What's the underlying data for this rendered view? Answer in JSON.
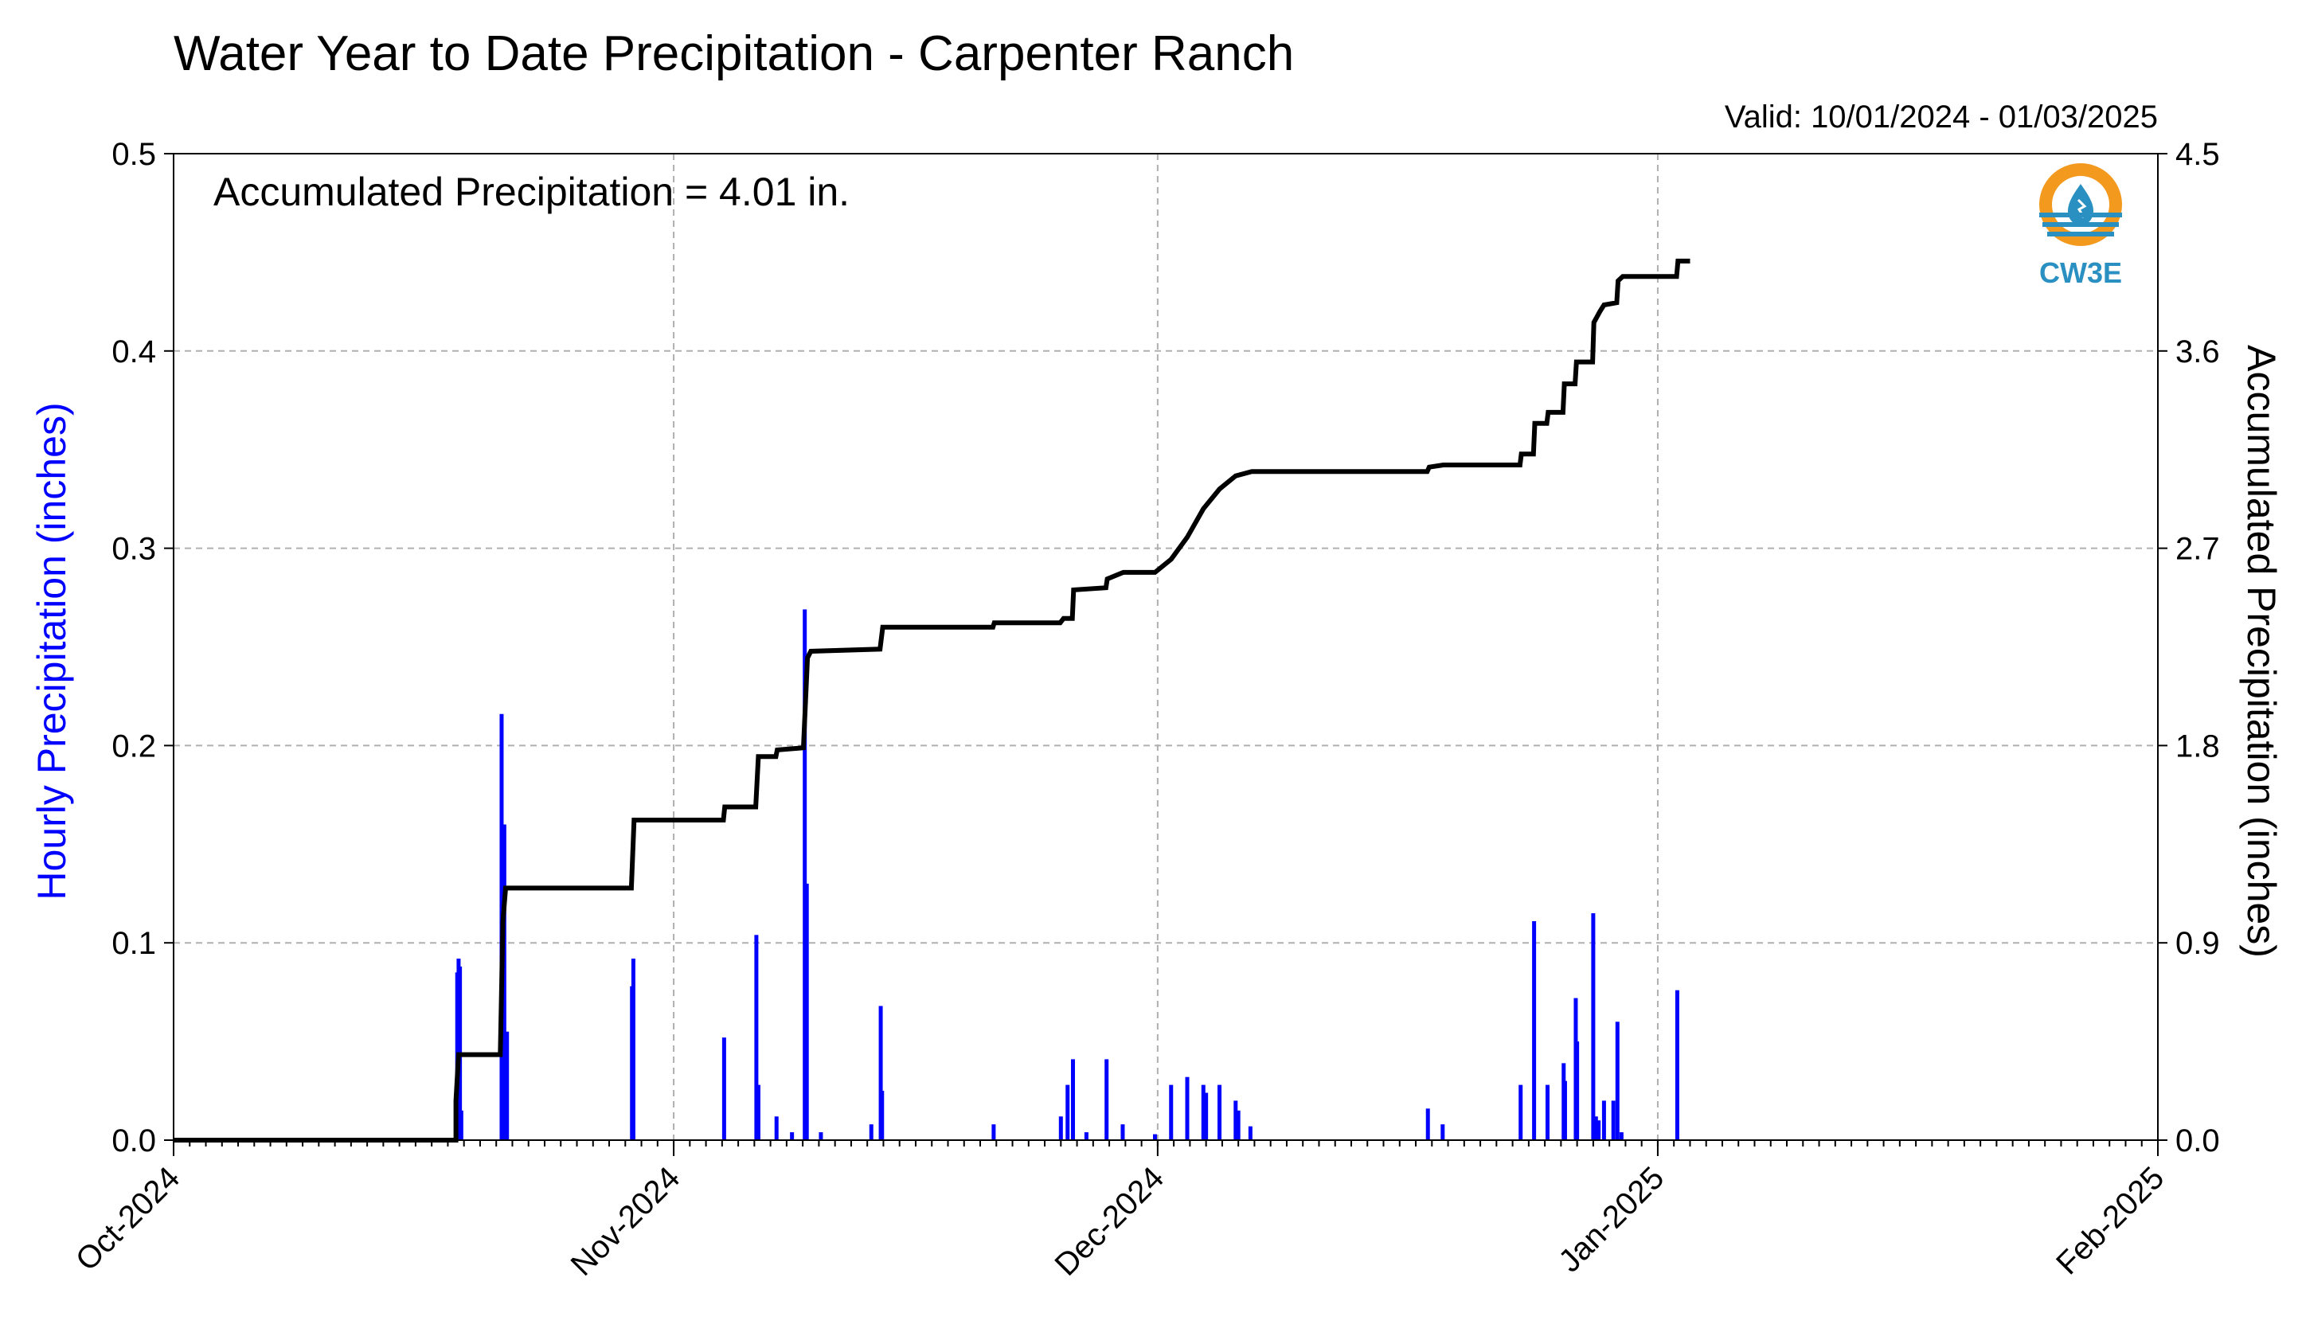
{
  "title": "Water Year to Date Precipitation - Carpenter Ranch",
  "valid": "Valid: 10/01/2024 - 01/03/2025",
  "annotation": "Accumulated Precipitation = 4.01 in.",
  "logo_text": "CW3E",
  "colors": {
    "hourly": "#0000ff",
    "accum": "#000000",
    "grid": "#b0b0b0",
    "logo_orange": "#f39a1e",
    "logo_blue": "#2a8fc1"
  },
  "chart_data": {
    "type": "bar",
    "title": "Water Year to Date Precipitation - Carpenter Ranch",
    "x_axis": {
      "type": "date",
      "range": [
        "2024-10-01",
        "2025-02-01"
      ],
      "tick_labels": [
        "Oct-2024",
        "Nov-2024",
        "Dec-2024",
        "Jan-2025",
        "Feb-2025"
      ],
      "tick_dates": [
        "2024-10-01",
        "2024-11-01",
        "2024-12-01",
        "2025-01-01",
        "2025-02-01"
      ]
    },
    "y_left": {
      "label": "Hourly Precipitation (inches)",
      "range": [
        0,
        0.5
      ],
      "ticks": [
        "0.0",
        "0.1",
        "0.2",
        "0.3",
        "0.4",
        "0.5"
      ]
    },
    "y_right": {
      "label": "Accumulated Precipitation (inches)",
      "range": [
        0,
        4.5
      ],
      "ticks": [
        "0.0",
        "0.9",
        "1.8",
        "2.7",
        "3.6",
        "4.5"
      ]
    },
    "grid": true,
    "series": [
      {
        "axis": "left",
        "type": "bar",
        "color": "#0000ff",
        "points": [
          [
            "2024-10-18T12:00",
            0.02
          ],
          [
            "2024-10-18T14:00",
            0.085
          ],
          [
            "2024-10-18T16:00",
            0.092
          ],
          [
            "2024-10-18T18:00",
            0.088
          ],
          [
            "2024-10-18T20:00",
            0.015
          ],
          [
            "2024-10-21T08:00",
            0.216
          ],
          [
            "2024-10-21T12:00",
            0.16
          ],
          [
            "2024-10-21T16:00",
            0.055
          ],
          [
            "2024-10-29T10:00",
            0.078
          ],
          [
            "2024-10-29T12:00",
            0.092
          ],
          [
            "2024-11-04T03:00",
            0.052
          ],
          [
            "2024-11-06T03:00",
            0.104
          ],
          [
            "2024-11-06T06:00",
            0.028
          ],
          [
            "2024-11-07T09:00",
            0.012
          ],
          [
            "2024-11-08T08:00",
            0.004
          ],
          [
            "2024-11-09T03:00",
            0.269
          ],
          [
            "2024-11-09T06:00",
            0.13
          ],
          [
            "2024-11-10T03:00",
            0.004
          ],
          [
            "2024-11-13T06:00",
            0.008
          ],
          [
            "2024-11-13T20:00",
            0.068
          ],
          [
            "2024-11-13T22:00",
            0.025
          ],
          [
            "2024-11-20T20:00",
            0.008
          ],
          [
            "2024-11-25T00:00",
            0.012
          ],
          [
            "2024-11-25T10:00",
            0.028
          ],
          [
            "2024-11-25T18:00",
            0.041
          ],
          [
            "2024-11-26T14:00",
            0.004
          ],
          [
            "2024-11-27T20:00",
            0.041
          ],
          [
            "2024-11-28T20:00",
            0.008
          ],
          [
            "2024-11-30T20:00",
            0.003
          ],
          [
            "2024-12-01T20:00",
            0.028
          ],
          [
            "2024-12-02T20:00",
            0.032
          ],
          [
            "2024-12-03T20:00",
            0.028
          ],
          [
            "2024-12-04T00:00",
            0.024
          ],
          [
            "2024-12-04T20:00",
            0.028
          ],
          [
            "2024-12-05T20:00",
            0.02
          ],
          [
            "2024-12-06T00:00",
            0.015
          ],
          [
            "2024-12-06T18:00",
            0.007
          ],
          [
            "2024-12-17T18:00",
            0.016
          ],
          [
            "2024-12-18T16:00",
            0.008
          ],
          [
            "2024-12-23T12:00",
            0.028
          ],
          [
            "2024-12-24T08:00",
            0.111
          ],
          [
            "2024-12-25T04:00",
            0.028
          ],
          [
            "2024-12-26T04:00",
            0.039
          ],
          [
            "2024-12-26T06:00",
            0.03
          ],
          [
            "2024-12-26T22:00",
            0.072
          ],
          [
            "2024-12-27T00:00",
            0.05
          ],
          [
            "2024-12-28T00:00",
            0.115
          ],
          [
            "2024-12-28T04:00",
            0.012
          ],
          [
            "2024-12-28T08:00",
            0.01
          ],
          [
            "2024-12-28T16:00",
            0.02
          ],
          [
            "2024-12-29T06:00",
            0.02
          ],
          [
            "2024-12-29T12:00",
            0.06
          ],
          [
            "2024-12-29T18:00",
            0.004
          ],
          [
            "2025-01-02T05:00",
            0.076
          ]
        ]
      },
      {
        "axis": "right",
        "type": "step-line",
        "color": "#000000",
        "points": [
          [
            "2024-10-01T00:00",
            0.0
          ],
          [
            "2024-10-18T12:00",
            0.0
          ],
          [
            "2024-10-18T12:00",
            0.18
          ],
          [
            "2024-10-18T16:00",
            0.39
          ],
          [
            "2024-10-21T06:00",
            0.39
          ],
          [
            "2024-10-21T10:00",
            1.0
          ],
          [
            "2024-10-21T14:00",
            1.15
          ],
          [
            "2024-10-29T09:00",
            1.15
          ],
          [
            "2024-10-29T13:00",
            1.46
          ],
          [
            "2024-11-04T02:00",
            1.46
          ],
          [
            "2024-11-04T04:00",
            1.52
          ],
          [
            "2024-11-06T02:00",
            1.52
          ],
          [
            "2024-11-06T06:00",
            1.75
          ],
          [
            "2024-11-07T08:00",
            1.75
          ],
          [
            "2024-11-07T10:00",
            1.78
          ],
          [
            "2024-11-09T01:00",
            1.79
          ],
          [
            "2024-11-09T07:00",
            2.2
          ],
          [
            "2024-11-09T12:00",
            2.23
          ],
          [
            "2024-11-13T19:00",
            2.24
          ],
          [
            "2024-11-13T23:00",
            2.34
          ],
          [
            "2024-11-20T19:00",
            2.34
          ],
          [
            "2024-11-20T21:00",
            2.36
          ],
          [
            "2024-11-24T23:00",
            2.36
          ],
          [
            "2024-11-25T04:00",
            2.38
          ],
          [
            "2024-11-25T17:00",
            2.38
          ],
          [
            "2024-11-25T19:00",
            2.51
          ],
          [
            "2024-11-27T19:00",
            2.52
          ],
          [
            "2024-11-27T21:00",
            2.56
          ],
          [
            "2024-11-28T21:00",
            2.59
          ],
          [
            "2024-11-30T20:00",
            2.59
          ],
          [
            "2024-12-01T20:00",
            2.65
          ],
          [
            "2024-12-02T20:00",
            2.75
          ],
          [
            "2024-12-03T20:00",
            2.88
          ],
          [
            "2024-12-04T20:00",
            2.97
          ],
          [
            "2024-12-05T20:00",
            3.03
          ],
          [
            "2024-12-06T20:00",
            3.05
          ],
          [
            "2024-12-17T17:00",
            3.05
          ],
          [
            "2024-12-17T20:00",
            3.07
          ],
          [
            "2024-12-18T17:00",
            3.08
          ],
          [
            "2024-12-23T11:00",
            3.08
          ],
          [
            "2024-12-23T13:00",
            3.13
          ],
          [
            "2024-12-24T07:00",
            3.13
          ],
          [
            "2024-12-24T09:00",
            3.27
          ],
          [
            "2024-12-25T03:00",
            3.27
          ],
          [
            "2024-12-25T05:00",
            3.32
          ],
          [
            "2024-12-26T03:00",
            3.32
          ],
          [
            "2024-12-26T05:00",
            3.45
          ],
          [
            "2024-12-26T21:00",
            3.45
          ],
          [
            "2024-12-26T23:00",
            3.55
          ],
          [
            "2024-12-27T23:00",
            3.55
          ],
          [
            "2024-12-28T01:00",
            3.73
          ],
          [
            "2024-12-28T10:00",
            3.78
          ],
          [
            "2024-12-28T16:00",
            3.81
          ],
          [
            "2024-12-29T11:00",
            3.82
          ],
          [
            "2024-12-29T13:00",
            3.92
          ],
          [
            "2024-12-29T20:00",
            3.94
          ],
          [
            "2025-01-02T04:00",
            3.94
          ],
          [
            "2025-01-02T06:00",
            4.01
          ],
          [
            "2025-01-03T00:00",
            4.01
          ]
        ]
      }
    ]
  }
}
